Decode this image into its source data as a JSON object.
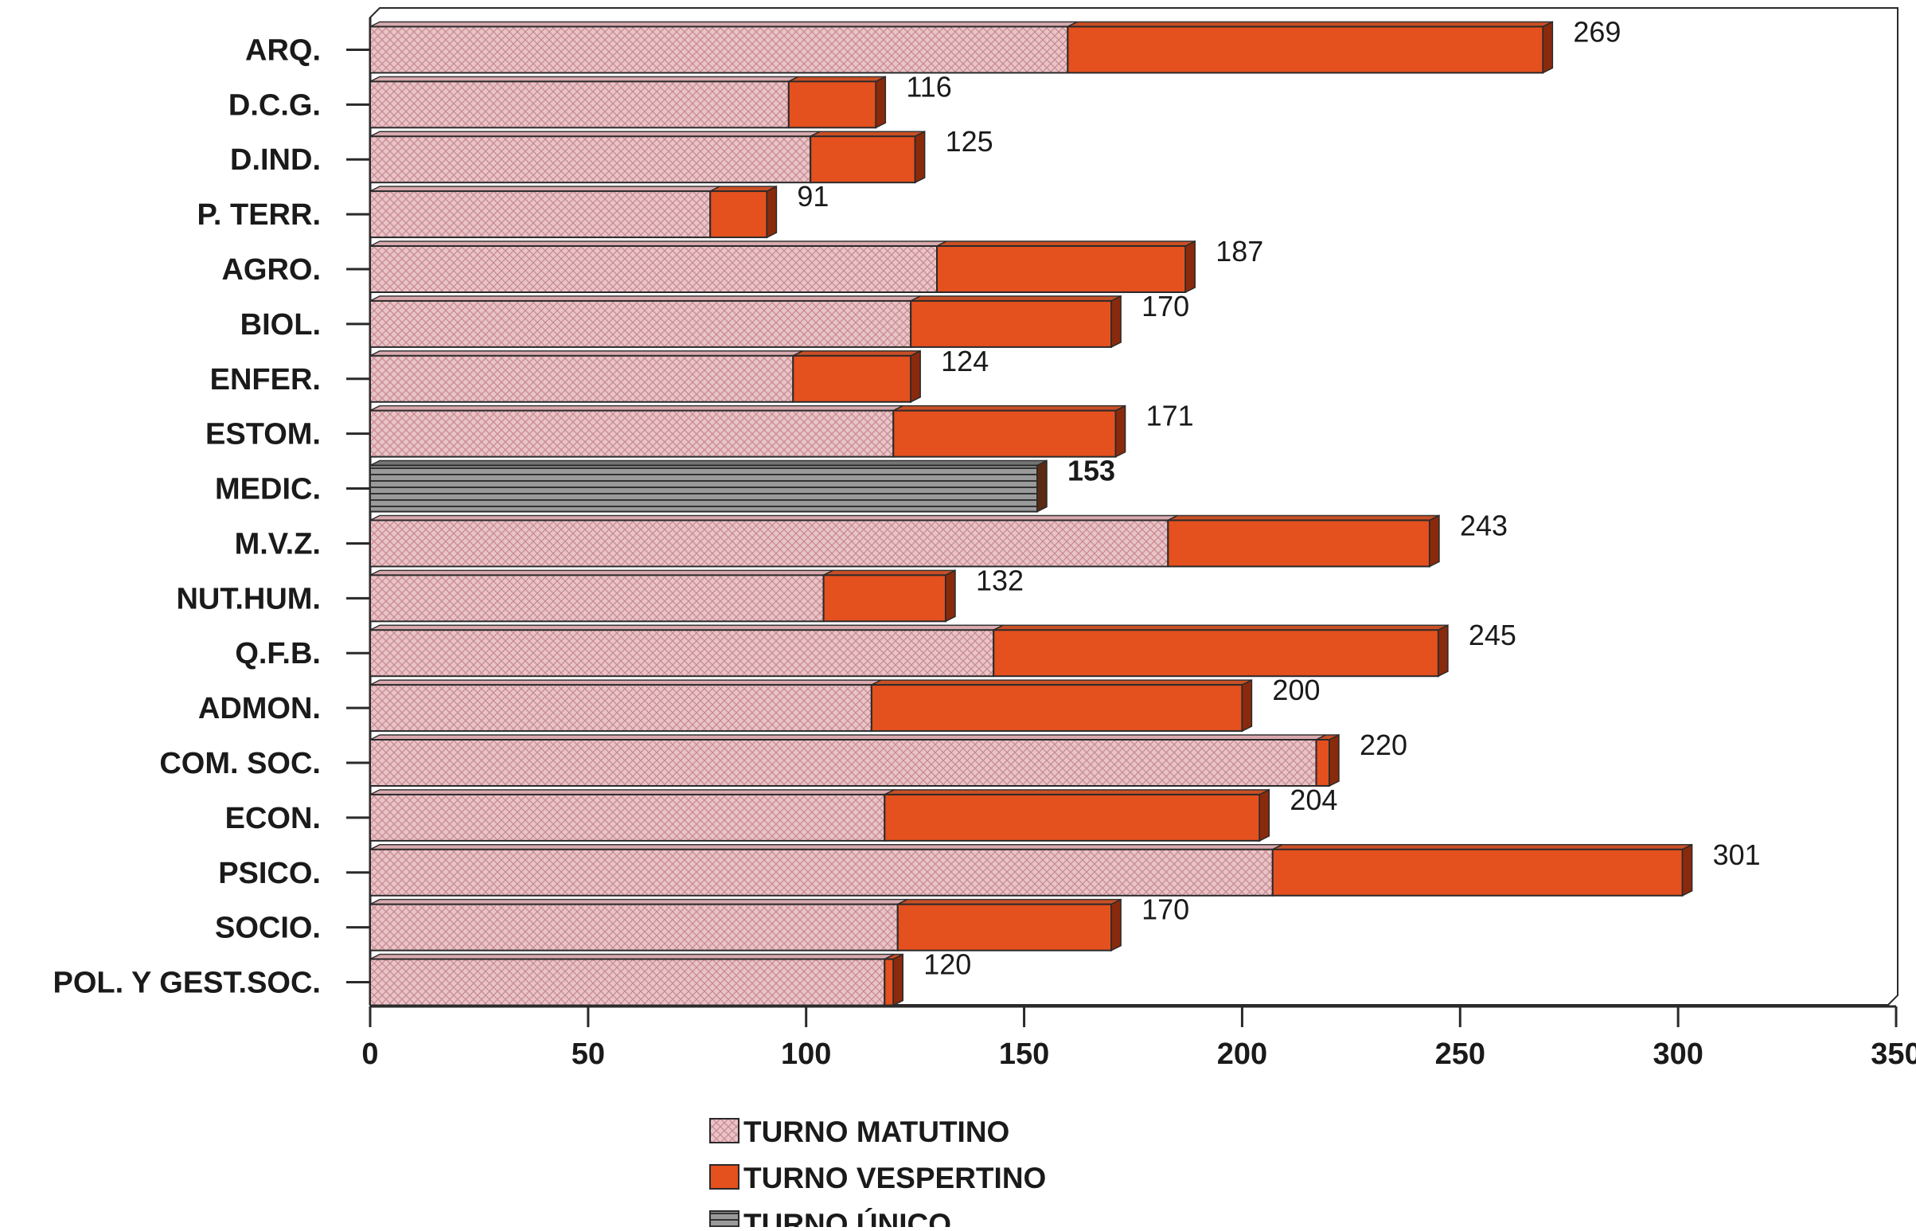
{
  "chart_data": {
    "type": "bar",
    "orientation": "horizontal",
    "stacked": true,
    "categories": [
      "ARQ.",
      "D.C.G.",
      "D.IND.",
      "P. TERR.",
      "AGRO.",
      "BIOL.",
      "ENFER.",
      "ESTOM.",
      "MEDIC.",
      "M.V.Z.",
      "NUT.HUM.",
      "Q.F.B.",
      "ADMON.",
      "COM. SOC.",
      "ECON.",
      "PSICO.",
      "SOCIO.",
      "POL. Y GEST.SOC."
    ],
    "series": [
      {
        "name": "TURNO MATUTINO",
        "values": [
          160,
          96,
          101,
          78,
          130,
          124,
          97,
          120,
          0,
          183,
          104,
          143,
          115,
          217,
          118,
          207,
          121,
          118
        ]
      },
      {
        "name": "TURNO VESPERTINO",
        "values": [
          109,
          20,
          24,
          13,
          57,
          46,
          27,
          51,
          0,
          60,
          28,
          102,
          85,
          3,
          86,
          94,
          49,
          2
        ]
      },
      {
        "name": "TURNO ÚNICO",
        "values": [
          0,
          0,
          0,
          0,
          0,
          0,
          0,
          0,
          153,
          0,
          0,
          0,
          0,
          0,
          0,
          0,
          0,
          0
        ]
      }
    ],
    "totals": [
      "269",
      "116",
      "125",
      "91",
      "187",
      "170",
      "124",
      "171",
      "153",
      "243",
      "132",
      "245",
      "200",
      "220",
      "204",
      "301",
      "170",
      "120"
    ],
    "xlim": [
      0,
      350
    ],
    "xticks": [
      "0",
      "50",
      "100",
      "150",
      "200",
      "250",
      "300",
      "350"
    ],
    "legend_position": "bottom",
    "grid": false,
    "colors": {
      "matutino": "#e8c4c8",
      "matutino_hatch": "#c98a90",
      "vespertino": "#e4501e",
      "vespertino_dark": "#8a2a0c",
      "unico": "#8c8c8c",
      "unico_line": "#333333",
      "outline": "#2a2a2a"
    }
  }
}
